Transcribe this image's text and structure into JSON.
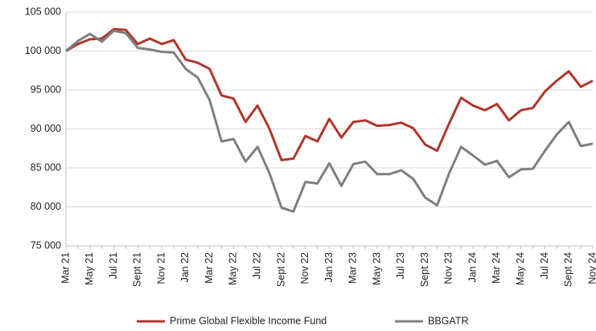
{
  "chart_data": {
    "type": "line",
    "categories": [
      "Mar 21",
      null,
      "May 21",
      null,
      "Jul 21",
      null,
      "Sept 21",
      null,
      "Nov 21",
      null,
      "Jan 22",
      null,
      "Mar 22",
      null,
      "May 22",
      null,
      "Jul 22",
      null,
      "Sept 22",
      null,
      "Nov 22",
      null,
      "Jan 23",
      null,
      "Mar 23",
      null,
      "May 23",
      null,
      "Jul 23",
      null,
      "Sept 23",
      null,
      "Nov 23",
      null,
      "Jan 24",
      null,
      "Mar 24",
      null,
      "May 24",
      null,
      "Jul 24",
      null,
      "Sept 24",
      null,
      "Nov 24"
    ],
    "series": [
      {
        "name": "Prime Global Flexible Income Fund",
        "color": "#b0352b",
        "values": [
          100000,
          100900,
          101500,
          101600,
          102800,
          102700,
          100900,
          101600,
          100900,
          101400,
          98900,
          98500,
          97700,
          94300,
          93900,
          90900,
          93000,
          90000,
          86000,
          86200,
          89100,
          88400,
          91300,
          88900,
          90900,
          91100,
          90400,
          90500,
          90800,
          90100,
          88000,
          87200,
          90700,
          94000,
          93000,
          92400,
          93200,
          91100,
          92400,
          92700,
          94800,
          96200,
          97400,
          95400,
          96200
        ]
      },
      {
        "name": "BBGATR",
        "color": "#7f7f7f",
        "values": [
          100000,
          101300,
          102200,
          101200,
          102600,
          102300,
          100400,
          100200,
          99900,
          99800,
          97700,
          96600,
          93700,
          88400,
          88700,
          85800,
          87700,
          84300,
          79900,
          79400,
          83200,
          83000,
          85600,
          82700,
          85500,
          85800,
          84200,
          84200,
          84700,
          83600,
          81200,
          80200,
          84300,
          87700,
          86600,
          85400,
          85900,
          83800,
          84800,
          84900,
          87200,
          89300,
          90900,
          87800,
          88100
        ]
      }
    ],
    "ylim": [
      75000,
      105000
    ],
    "yticks": [
      {
        "value": 75000,
        "label": "75 000"
      },
      {
        "value": 80000,
        "label": "80 000"
      },
      {
        "value": 85000,
        "label": "85 000"
      },
      {
        "value": 90000,
        "label": "90 000"
      },
      {
        "value": 95000,
        "label": "95 000"
      },
      {
        "value": 100000,
        "label": "100 000"
      },
      {
        "value": 105000,
        "label": "105 000"
      }
    ],
    "grid": true
  }
}
